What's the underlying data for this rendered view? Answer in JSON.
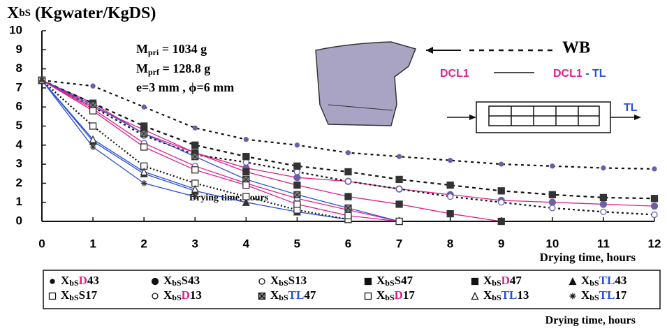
{
  "chart_data": {
    "type": "line",
    "title": [
      "X",
      "bS",
      " (Kgwater/KgDS)"
    ],
    "x_label": "Drying time, hours",
    "x_label_inner": "Drying time, hours",
    "legend_caption": "Drying time, hours",
    "annotations": {
      "mpri": [
        "M",
        "pri",
        " = 1034 g"
      ],
      "mprf": [
        "M",
        "prf",
        " = 128.8 g"
      ],
      "dims": "e=3 mm , ϕ=6 mm",
      "wb": "WB",
      "dcl1": "DCL1",
      "dcl1_tl": [
        "DCL1",
        " - TL"
      ],
      "tl": "TL"
    },
    "x": [
      0,
      1,
      2,
      3,
      4,
      5,
      6,
      7,
      8,
      9,
      10,
      11,
      12
    ],
    "xlim": [
      0,
      12
    ],
    "ylim": [
      0,
      10
    ],
    "xticks": [
      0,
      1,
      2,
      3,
      4,
      5,
      6,
      7,
      8,
      9,
      10,
      11,
      12
    ],
    "yticks": [
      0,
      1,
      2,
      3,
      4,
      5,
      6,
      7,
      8,
      9,
      10
    ],
    "series": [
      {
        "name": "XbSD43",
        "marker": "dot",
        "color": "#111111",
        "dash": "4,5",
        "label_color": "#e0218a",
        "values": [
          7.4,
          7.1,
          6.0,
          4.9,
          4.3,
          4.0,
          3.6,
          3.4,
          3.2,
          3.0,
          2.9,
          2.8,
          2.75
        ]
      },
      {
        "name": "XbSS43",
        "marker": "circle",
        "color": "#e0218a",
        "dash": "none",
        "label_color": "#111111",
        "values": [
          7.4,
          6.2,
          4.6,
          3.6,
          2.8,
          2.3,
          2.1,
          1.7,
          1.4,
          1.1,
          1.0,
          0.9,
          0.8
        ]
      },
      {
        "name": "XbSS13",
        "marker": "open-circle",
        "color": "#111111",
        "dash": "3,4",
        "label_color": "#111111",
        "values": [
          7.4,
          6.0,
          4.5,
          3.5,
          3.1,
          2.6,
          2.1,
          1.7,
          1.3,
          1.0,
          0.7,
          0.5,
          0.35
        ]
      },
      {
        "name": "XbSS47",
        "marker": "square",
        "color": "#111111",
        "dash": "5,5",
        "label_color": "#111111",
        "values": [
          7.4,
          6.2,
          5.0,
          4.0,
          3.4,
          2.9,
          2.6,
          2.2,
          1.9,
          1.6,
          1.4,
          1.25,
          1.2
        ]
      },
      {
        "name": "XbSD47",
        "marker": "square",
        "color": "#e0218a",
        "dash": "none",
        "label_color": "#e0218a",
        "values": [
          7.4,
          6.0,
          4.8,
          3.6,
          2.6,
          1.9,
          1.3,
          0.9,
          0.4,
          0.0,
          null,
          null,
          null
        ]
      },
      {
        "name": "XbSTL43",
        "marker": "triangle",
        "color": "#2a4fd6",
        "dash": "none",
        "label_color": "#2a4fd6",
        "values": [
          7.4,
          4.2,
          2.5,
          1.6,
          1.0,
          0.5,
          0.1,
          null,
          null,
          null,
          null,
          null,
          null
        ]
      },
      {
        "name": "XbSS17",
        "marker": "open-square",
        "color": "#111111",
        "dash": "2,3",
        "label_color": "#111111",
        "values": [
          7.4,
          5.0,
          2.9,
          2.0,
          1.3,
          0.6,
          0.1,
          null,
          null,
          null,
          null,
          null,
          null
        ]
      },
      {
        "name": "XbSD13",
        "marker": "open-circle",
        "color": "#e0218a",
        "dash": "none",
        "label_color": "#e0218a",
        "values": [
          7.4,
          5.9,
          4.1,
          2.9,
          2.0,
          1.2,
          0.6,
          0.0,
          null,
          null,
          null,
          null,
          null
        ]
      },
      {
        "name": "XbSTL47",
        "marker": "box-x",
        "color": "#2a4fd6",
        "dash": "none",
        "label_color": "#2a4fd6",
        "values": [
          7.4,
          6.1,
          4.6,
          3.4,
          2.2,
          1.4,
          0.7,
          0.0,
          null,
          null,
          null,
          null,
          null
        ]
      },
      {
        "name": "XbSD17",
        "marker": "open-square",
        "color": "#e0218a",
        "dash": "none",
        "label_color": "#e0218a",
        "values": [
          7.4,
          5.8,
          3.9,
          2.7,
          1.9,
          0.9,
          0.3,
          0.0,
          null,
          null,
          null,
          null,
          null
        ]
      },
      {
        "name": "XbSTL13",
        "marker": "open-triangle",
        "color": "#2a4fd6",
        "dash": "none",
        "label_color": "#2a4fd6",
        "values": [
          7.4,
          4.3,
          2.6,
          1.7,
          null,
          null,
          null,
          null,
          null,
          null,
          null,
          null,
          null
        ]
      },
      {
        "name": "XbSTL17",
        "marker": "star",
        "color": "#2a4fd6",
        "dash": "none",
        "label_color": "#2a4fd6",
        "values": [
          7.4,
          3.9,
          2.0,
          1.3,
          null,
          null,
          null,
          null,
          null,
          null,
          null,
          null,
          null
        ]
      }
    ]
  }
}
